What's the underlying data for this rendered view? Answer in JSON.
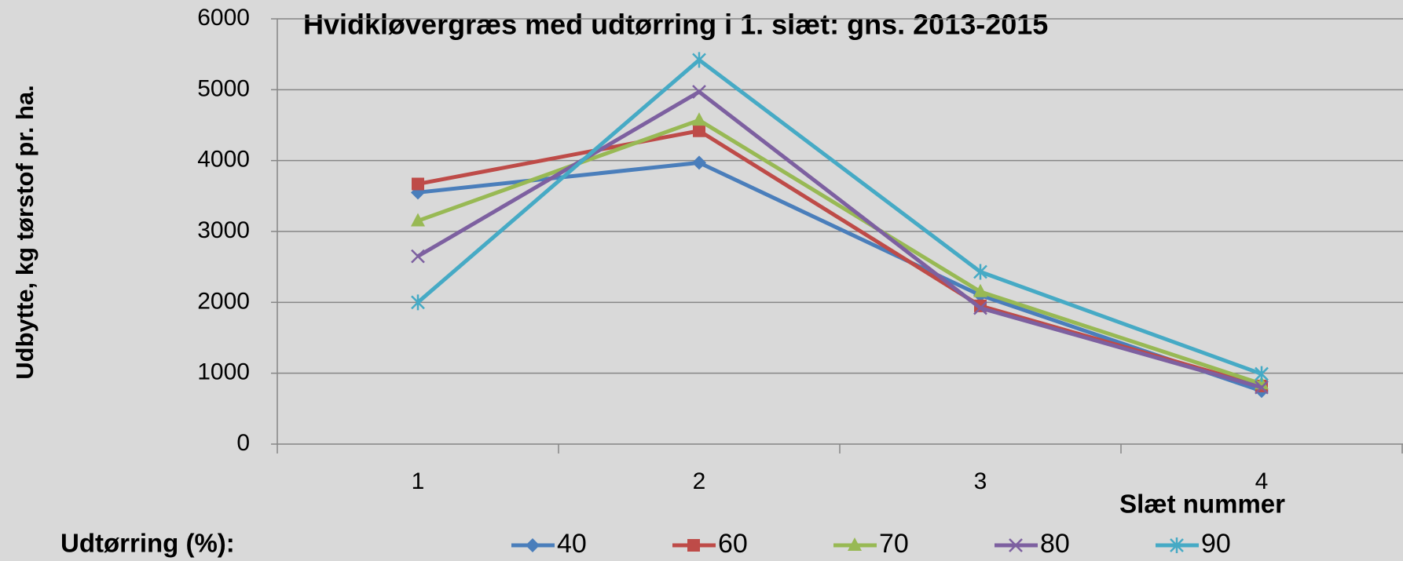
{
  "chart_data": {
    "type": "line",
    "title": "Hvidkløvergræs med udtørring i 1. slæt:  gns. 2013-2015",
    "y_label": "Udbytte, kg tørstof pr. ha.",
    "x_label": "Slæt nummer",
    "legend_title": "Udtørring (%):",
    "categories": [
      "1",
      "2",
      "3",
      "4"
    ],
    "series": [
      {
        "name": "40",
        "color": "#4a7ebb",
        "marker": "diamond",
        "values": [
          3550,
          3970,
          2100,
          750
        ]
      },
      {
        "name": "60",
        "color": "#be4b48",
        "marker": "square",
        "values": [
          3670,
          4420,
          1950,
          820
        ]
      },
      {
        "name": "70",
        "color": "#98b954",
        "marker": "triangle",
        "values": [
          3150,
          4570,
          2150,
          850
        ]
      },
      {
        "name": "80",
        "color": "#7d60a0",
        "marker": "x",
        "values": [
          2650,
          4970,
          1920,
          800
        ]
      },
      {
        "name": "90",
        "color": "#46aac5",
        "marker": "star",
        "values": [
          2000,
          5420,
          2430,
          990
        ]
      }
    ],
    "ylim": [
      0,
      6000
    ],
    "yticks": [
      0,
      1000,
      2000,
      3000,
      4000,
      5000,
      6000
    ],
    "grid": true
  }
}
